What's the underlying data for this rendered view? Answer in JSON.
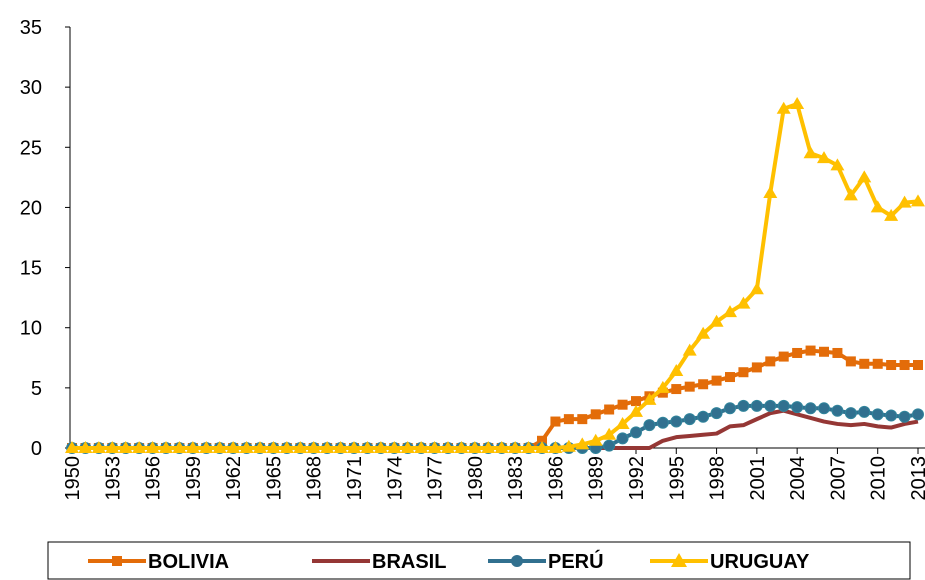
{
  "chart_data": {
    "type": "line",
    "x": [
      1950,
      1951,
      1952,
      1953,
      1954,
      1955,
      1956,
      1957,
      1958,
      1959,
      1960,
      1961,
      1962,
      1963,
      1964,
      1965,
      1966,
      1967,
      1968,
      1969,
      1970,
      1971,
      1972,
      1973,
      1974,
      1975,
      1976,
      1977,
      1978,
      1979,
      1980,
      1981,
      1982,
      1983,
      1984,
      1985,
      1986,
      1987,
      1988,
      1989,
      1990,
      1991,
      1992,
      1993,
      1994,
      1995,
      1996,
      1997,
      1998,
      1999,
      2000,
      2001,
      2002,
      2003,
      2004,
      2005,
      2006,
      2007,
      2008,
      2009,
      2010,
      2011,
      2012,
      2013
    ],
    "xlim": [
      1950,
      2013
    ],
    "xticks": [
      1950,
      1953,
      1956,
      1959,
      1962,
      1965,
      1968,
      1971,
      1974,
      1977,
      1980,
      1983,
      1986,
      1989,
      1992,
      1995,
      1998,
      2001,
      2004,
      2007,
      2010,
      2013
    ],
    "ylim": [
      0,
      35
    ],
    "yticks": [
      0,
      5,
      10,
      15,
      20,
      25,
      30,
      35
    ],
    "grid": false,
    "legend": "bottom",
    "series": [
      {
        "name": "BOLIVIA",
        "color": "#e36c09",
        "marker": "square",
        "values": [
          0,
          0,
          0,
          0,
          0,
          0,
          0,
          0,
          0,
          0,
          0,
          0,
          0,
          0,
          0,
          0,
          0,
          0,
          0,
          0,
          0,
          0,
          0,
          0,
          0,
          0,
          0,
          0,
          0,
          0,
          0,
          0,
          0,
          0,
          0,
          0.6,
          2.2,
          2.4,
          2.4,
          2.8,
          3.2,
          3.6,
          3.9,
          4.3,
          4.6,
          4.9,
          5.1,
          5.3,
          5.6,
          5.9,
          6.3,
          6.7,
          7.2,
          7.6,
          7.9,
          8.1,
          8.0,
          7.9,
          7.2,
          7.0,
          7.0,
          6.9,
          6.9,
          6.9
        ]
      },
      {
        "name": "BRASIL",
        "color": "#953735",
        "marker": "none",
        "values": [
          0,
          0,
          0,
          0,
          0,
          0,
          0,
          0,
          0,
          0,
          0,
          0,
          0,
          0,
          0,
          0,
          0,
          0,
          0,
          0,
          0,
          0,
          0,
          0,
          0,
          0,
          0,
          0,
          0,
          0,
          0,
          0,
          0,
          0,
          0,
          0,
          0,
          0,
          0,
          0,
          0,
          0,
          0,
          0,
          0.6,
          0.9,
          1.0,
          1.1,
          1.2,
          1.8,
          1.9,
          2.4,
          2.9,
          3.1,
          2.8,
          2.5,
          2.2,
          2.0,
          1.9,
          2.0,
          1.8,
          1.7,
          2.0,
          2.2
        ]
      },
      {
        "name": "PERÚ",
        "color": "#31708f",
        "marker": "circle",
        "values": [
          0,
          0,
          0,
          0,
          0,
          0,
          0,
          0,
          0,
          0,
          0,
          0,
          0,
          0,
          0,
          0,
          0,
          0,
          0,
          0,
          0,
          0,
          0,
          0,
          0,
          0,
          0,
          0,
          0,
          0,
          0,
          0,
          0,
          0,
          0,
          0,
          0,
          0,
          0,
          0,
          0.2,
          0.8,
          1.3,
          1.9,
          2.1,
          2.2,
          2.4,
          2.6,
          2.9,
          3.3,
          3.5,
          3.5,
          3.5,
          3.5,
          3.4,
          3.3,
          3.3,
          3.1,
          2.9,
          3.0,
          2.8,
          2.7,
          2.6,
          2.8
        ]
      },
      {
        "name": "URUGUAY",
        "color": "#ffc000",
        "marker": "triangle",
        "values": [
          0,
          0,
          0,
          0,
          0,
          0,
          0,
          0,
          0,
          0,
          0,
          0,
          0,
          0,
          0,
          0,
          0,
          0,
          0,
          0,
          0,
          0,
          0,
          0,
          0,
          0,
          0,
          0,
          0,
          0,
          0,
          0,
          0,
          0,
          0,
          0,
          0,
          0.1,
          0.3,
          0.6,
          1.1,
          2.0,
          3.0,
          4.0,
          5.0,
          6.4,
          8.1,
          9.5,
          10.5,
          11.3,
          12.0,
          13.2,
          21.2,
          28.2,
          28.6,
          24.5,
          24.1,
          23.5,
          21.0,
          22.5,
          20.0,
          19.3,
          20.4,
          20.5
        ]
      }
    ]
  }
}
